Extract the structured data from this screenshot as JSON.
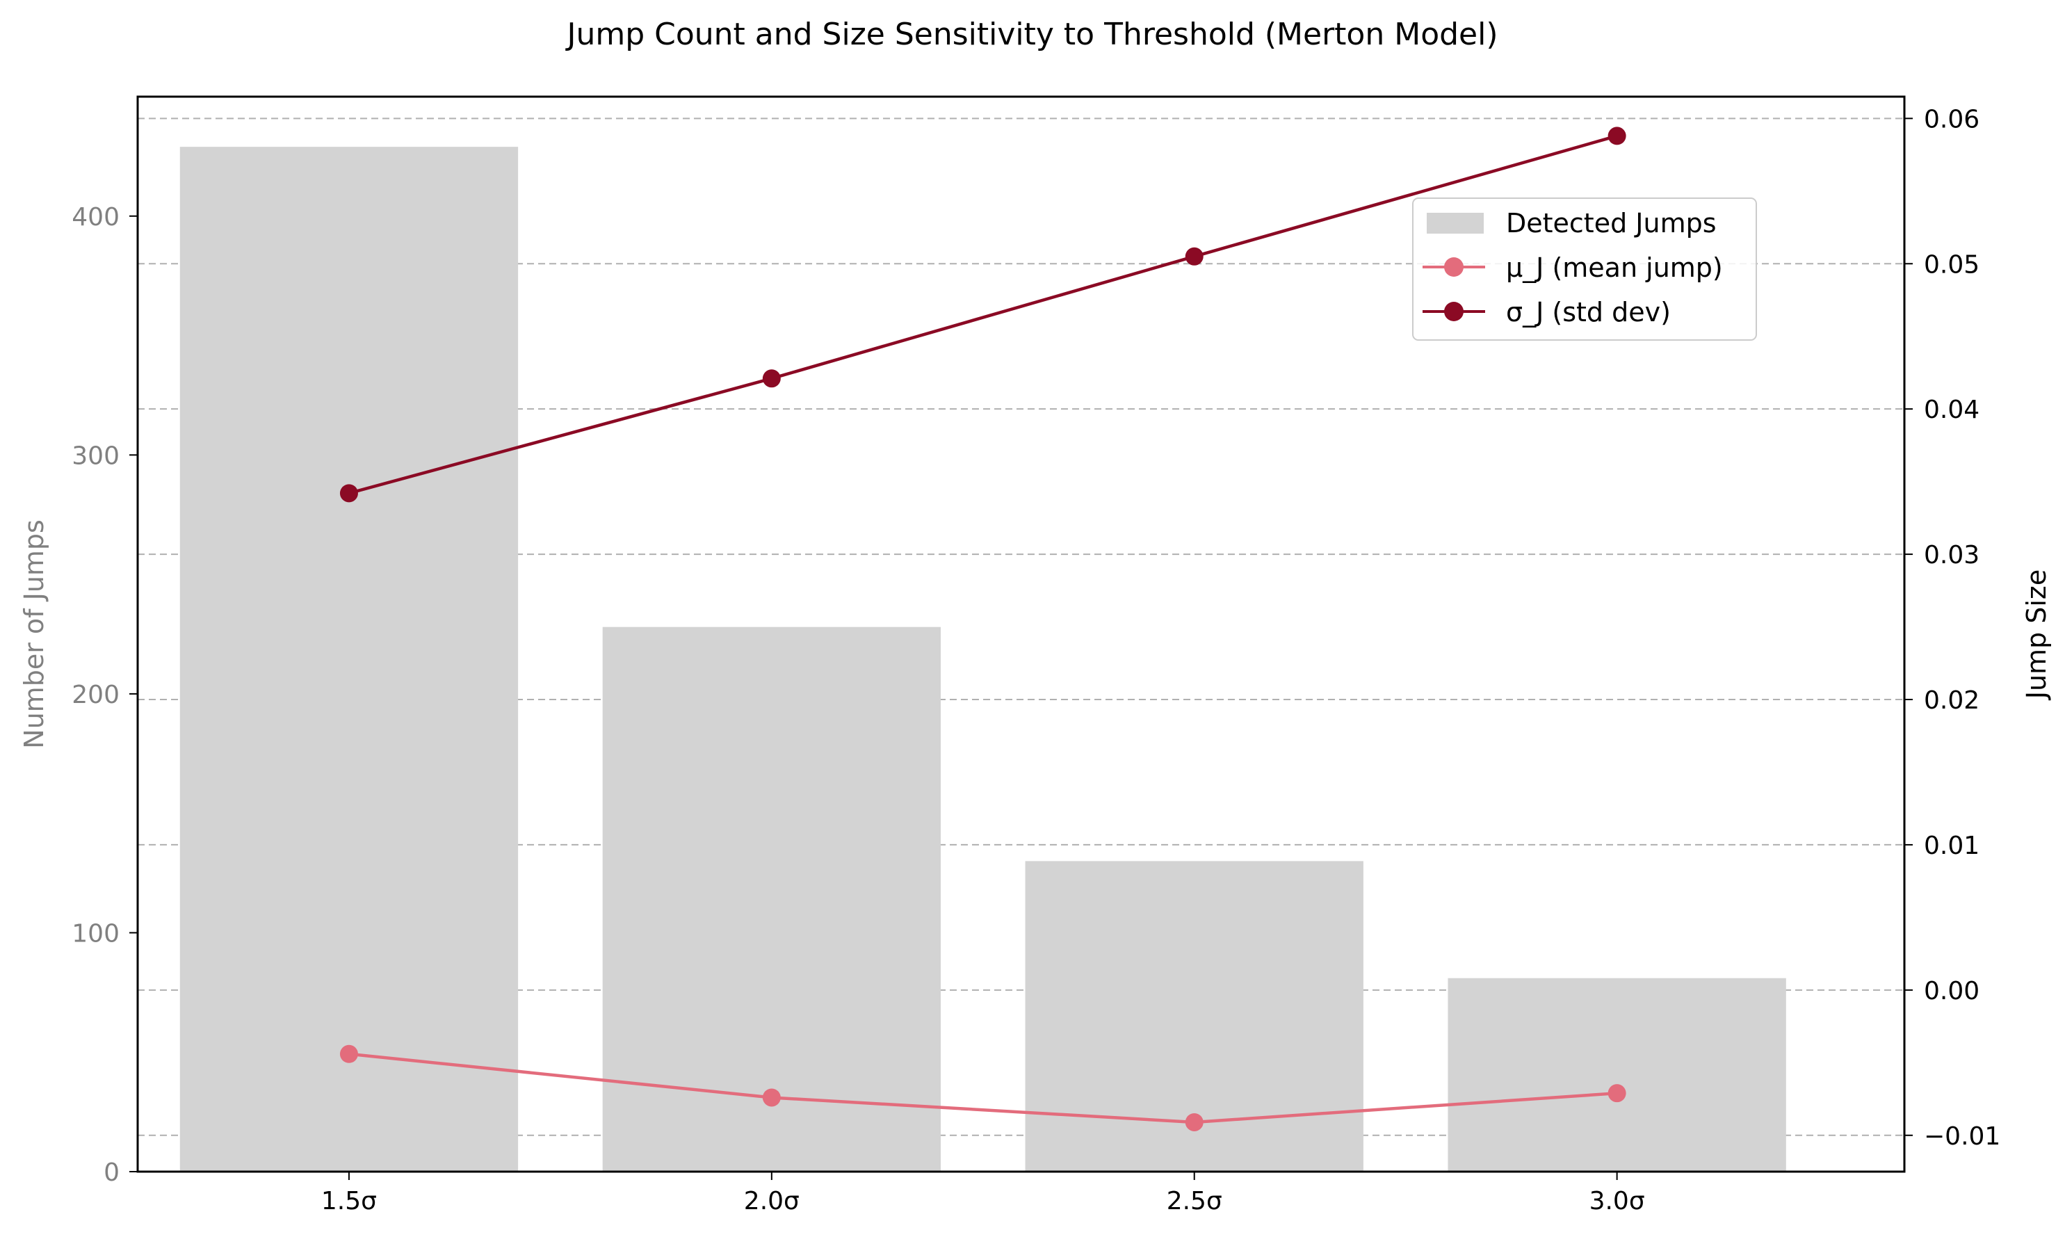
{
  "chart_data": {
    "type": "bar",
    "title": "Jump Count and Size Sensitivity to Threshold (Merton Model)",
    "categories": [
      "1.5σ",
      "2.0σ",
      "2.5σ",
      "3.0σ"
    ],
    "ylabel_left": "Number of Jumps",
    "ylabel_right": "Jump Size",
    "ylim_left": [
      0,
      450
    ],
    "ylim_right": [
      -0.0125,
      0.0615
    ],
    "yticks_left": [
      "0",
      "100",
      "200",
      "300",
      "400"
    ],
    "yticks_right": [
      "−0.01",
      "0.00",
      "0.01",
      "0.02",
      "0.03",
      "0.04",
      "0.05",
      "0.06"
    ],
    "grid": "horizontal dashed (right axis)",
    "legend_position": "upper-right",
    "series": [
      {
        "name": "Detected Jumps",
        "type": "bar",
        "axis": "left",
        "color": "#d3d3d3",
        "values": [
          429,
          228,
          130,
          81
        ]
      },
      {
        "name": "μ_J (mean jump)",
        "type": "line",
        "axis": "right",
        "color": "#e36c7c",
        "values": [
          -0.0044,
          -0.0074,
          -0.0091,
          -0.0071
        ]
      },
      {
        "name": "σ_J (std dev)",
        "type": "line",
        "axis": "right",
        "color": "#8b0a24",
        "values": [
          0.0342,
          0.0421,
          0.0505,
          0.0588
        ]
      }
    ]
  }
}
